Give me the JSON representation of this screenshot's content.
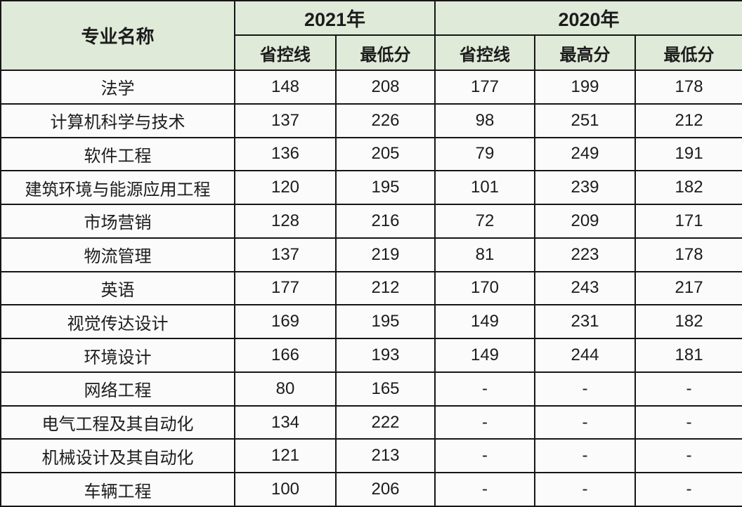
{
  "colors": {
    "header_bg": "#dfead8",
    "cell_bg": "#fbfbfb",
    "border": "#161616",
    "text": "#1c1c1c"
  },
  "chart_data": {
    "type": "table",
    "title": "",
    "columns": {
      "major": "专业名称",
      "groups": [
        {
          "label": "2021年",
          "sub": [
            "省控线",
            "最低分"
          ]
        },
        {
          "label": "2020年",
          "sub": [
            "省控线",
            "最高分",
            "最低分"
          ]
        }
      ]
    },
    "rows": [
      {
        "major": "法学",
        "values": [
          "148",
          "208",
          "177",
          "199",
          "178"
        ]
      },
      {
        "major": "计算机科学与技术",
        "values": [
          "137",
          "226",
          "98",
          "251",
          "212"
        ]
      },
      {
        "major": "软件工程",
        "values": [
          "136",
          "205",
          "79",
          "249",
          "191"
        ]
      },
      {
        "major": "建筑环境与能源应用工程",
        "values": [
          "120",
          "195",
          "101",
          "239",
          "182"
        ]
      },
      {
        "major": "市场营销",
        "values": [
          "128",
          "216",
          "72",
          "209",
          "171"
        ]
      },
      {
        "major": "物流管理",
        "values": [
          "137",
          "219",
          "81",
          "223",
          "178"
        ]
      },
      {
        "major": "英语",
        "values": [
          "177",
          "212",
          "170",
          "243",
          "217"
        ]
      },
      {
        "major": "视觉传达设计",
        "values": [
          "169",
          "195",
          "149",
          "231",
          "182"
        ]
      },
      {
        "major": "环境设计",
        "values": [
          "166",
          "193",
          "149",
          "244",
          "181"
        ]
      },
      {
        "major": "网络工程",
        "values": [
          "80",
          "165",
          "-",
          "-",
          "-"
        ]
      },
      {
        "major": "电气工程及其自动化",
        "values": [
          "134",
          "222",
          "-",
          "-",
          "-"
        ]
      },
      {
        "major": "机械设计及其自动化",
        "values": [
          "121",
          "213",
          "-",
          "-",
          "-"
        ]
      },
      {
        "major": "车辆工程",
        "values": [
          "100",
          "206",
          "-",
          "-",
          "-"
        ]
      }
    ]
  }
}
